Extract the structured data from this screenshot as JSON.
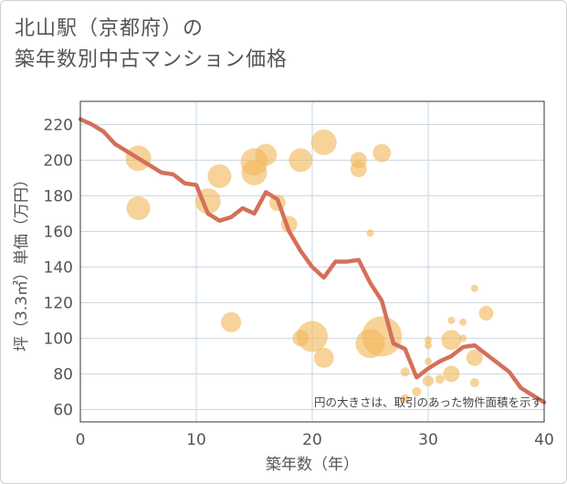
{
  "title": {
    "line1": "北山駅（京都府）の",
    "line2": "築年数別中古マンション価格"
  },
  "note": "円の大きさは、取引のあった物件面積を示す",
  "colors": {
    "line": "#d4705a",
    "bubble": "#f2b85a",
    "grid": "#c9d6e0",
    "frame": "#333333",
    "text": "#555555"
  },
  "chart_data": {
    "type": "scatter",
    "xlabel": "築年数（年）",
    "ylabel": "坪（3.3㎡）単価（万円）",
    "xlim": [
      0,
      40
    ],
    "ylim": [
      53,
      233
    ],
    "xticks": [
      0,
      10,
      20,
      30,
      40
    ],
    "yticks": [
      60,
      80,
      100,
      120,
      140,
      160,
      180,
      200,
      220
    ],
    "grid": true,
    "series": [
      {
        "kind": "line",
        "x": [
          0,
          1,
          2,
          3,
          4,
          5,
          6,
          7,
          8,
          9,
          10,
          11,
          12,
          13,
          14,
          15,
          16,
          17,
          18,
          19,
          20,
          21,
          22,
          23,
          24,
          25,
          26,
          27,
          28,
          29,
          30,
          31,
          32,
          33,
          34,
          35,
          36,
          37,
          38,
          39,
          40
        ],
        "y": [
          223,
          220,
          216,
          209,
          205,
          201,
          197,
          193,
          192,
          187,
          186,
          170,
          166,
          168,
          173,
          170,
          182,
          178,
          160,
          149,
          140,
          134,
          143,
          143,
          144,
          131,
          121,
          97,
          94,
          78,
          83,
          87,
          90,
          95,
          96,
          91,
          86,
          81,
          72,
          68,
          64
        ]
      },
      {
        "kind": "bubble",
        "points": [
          {
            "x": 5,
            "y": 201,
            "s": 14
          },
          {
            "x": 5,
            "y": 173,
            "s": 13
          },
          {
            "x": 11,
            "y": 177,
            "s": 14
          },
          {
            "x": 12,
            "y": 191,
            "s": 13
          },
          {
            "x": 13,
            "y": 109,
            "s": 11
          },
          {
            "x": 15,
            "y": 199,
            "s": 15
          },
          {
            "x": 15,
            "y": 193,
            "s": 14
          },
          {
            "x": 16,
            "y": 203,
            "s": 12
          },
          {
            "x": 17,
            "y": 176,
            "s": 9
          },
          {
            "x": 18,
            "y": 164,
            "s": 9
          },
          {
            "x": 19,
            "y": 200,
            "s": 13
          },
          {
            "x": 19,
            "y": 100,
            "s": 9
          },
          {
            "x": 20,
            "y": 101,
            "s": 17
          },
          {
            "x": 21,
            "y": 210,
            "s": 14
          },
          {
            "x": 21,
            "y": 89,
            "s": 11
          },
          {
            "x": 24,
            "y": 200,
            "s": 9
          },
          {
            "x": 24,
            "y": 195,
            "s": 9
          },
          {
            "x": 25,
            "y": 159,
            "s": 4
          },
          {
            "x": 25,
            "y": 97,
            "s": 16
          },
          {
            "x": 26,
            "y": 101,
            "s": 22
          },
          {
            "x": 26,
            "y": 204,
            "s": 10
          },
          {
            "x": 28,
            "y": 81,
            "s": 5
          },
          {
            "x": 28,
            "y": 66,
            "s": 5
          },
          {
            "x": 29,
            "y": 70,
            "s": 5
          },
          {
            "x": 30,
            "y": 99,
            "s": 4
          },
          {
            "x": 30,
            "y": 96,
            "s": 4
          },
          {
            "x": 30,
            "y": 87,
            "s": 4
          },
          {
            "x": 30,
            "y": 76,
            "s": 6
          },
          {
            "x": 31,
            "y": 77,
            "s": 5
          },
          {
            "x": 32,
            "y": 110,
            "s": 4
          },
          {
            "x": 32,
            "y": 99,
            "s": 11
          },
          {
            "x": 32,
            "y": 80,
            "s": 9
          },
          {
            "x": 33,
            "y": 109,
            "s": 4
          },
          {
            "x": 33,
            "y": 100,
            "s": 4
          },
          {
            "x": 34,
            "y": 128,
            "s": 4
          },
          {
            "x": 34,
            "y": 89,
            "s": 9
          },
          {
            "x": 34,
            "y": 75,
            "s": 5
          },
          {
            "x": 35,
            "y": 114,
            "s": 8
          }
        ]
      }
    ]
  }
}
